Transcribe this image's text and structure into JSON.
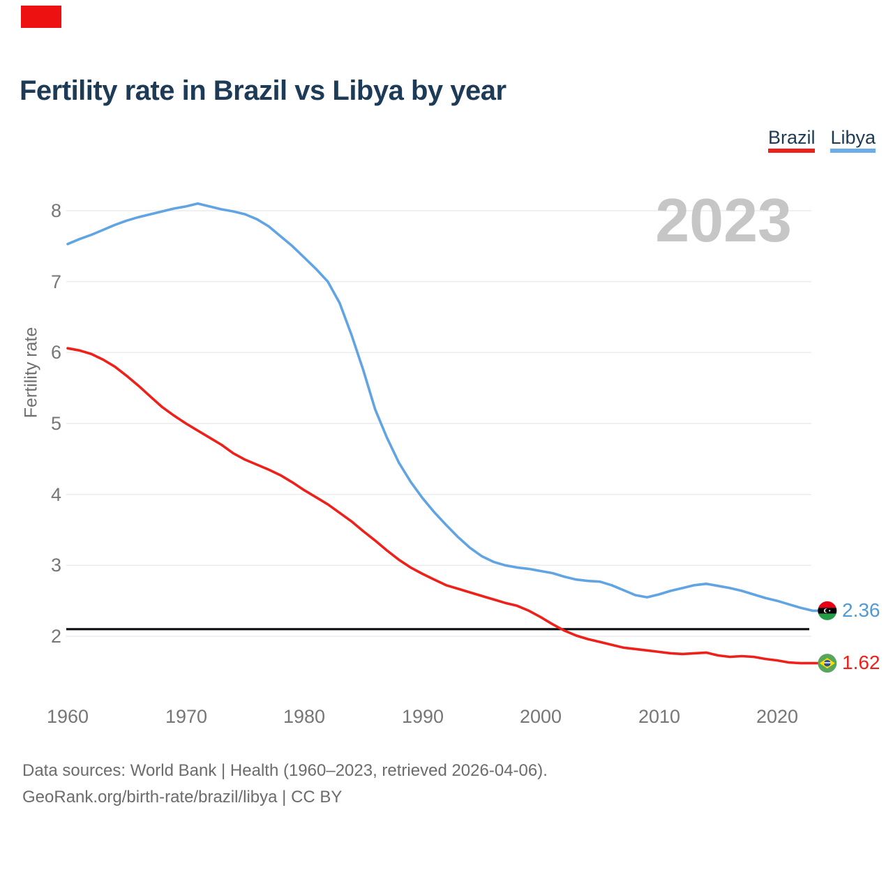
{
  "header": {
    "title": "Fertility rate in Brazil vs Libya by year"
  },
  "legend": {
    "items": [
      {
        "label": "Brazil",
        "color": "#ee2019"
      },
      {
        "label": "Libya",
        "color": "#6cace8"
      }
    ]
  },
  "watermark": "2023",
  "marker": {
    "color": "#ee1111"
  },
  "end_labels": {
    "libya": {
      "value": "2.36",
      "color": "#4f9ad9",
      "icon": "libya-flag"
    },
    "brazil": {
      "value": "1.62",
      "color": "#ee2019",
      "icon": "brazil-flag"
    }
  },
  "footer": {
    "line1": "Data sources: World Bank | Health (1960–2023, retrieved 2026-04-06).",
    "line2": "GeoRank.org/birth-rate/brazil/libya | CC BY"
  },
  "chart_data": {
    "type": "line",
    "title": "Fertility rate in Brazil vs Libya by year",
    "xlabel": "",
    "ylabel": "Fertility rate",
    "grid": "horizontal",
    "legend_position": "top-right",
    "yticks": [
      2,
      3,
      4,
      5,
      6,
      7,
      8
    ],
    "xticks": [
      1960,
      1970,
      1980,
      1990,
      2000,
      2010,
      2020
    ],
    "ylim": [
      1.55,
      8.35
    ],
    "reference_line": 2.1,
    "end_value_labels": {
      "Libya": "2.36",
      "Brazil": "1.62"
    },
    "x": [
      1960,
      1961,
      1962,
      1963,
      1964,
      1965,
      1966,
      1967,
      1968,
      1969,
      1970,
      1971,
      1972,
      1973,
      1974,
      1975,
      1976,
      1977,
      1978,
      1979,
      1980,
      1981,
      1982,
      1983,
      1984,
      1985,
      1986,
      1987,
      1988,
      1989,
      1990,
      1991,
      1992,
      1993,
      1994,
      1995,
      1996,
      1997,
      1998,
      1999,
      2000,
      2001,
      2002,
      2003,
      2004,
      2005,
      2006,
      2007,
      2008,
      2009,
      2010,
      2011,
      2012,
      2013,
      2014,
      2015,
      2016,
      2017,
      2018,
      2019,
      2020,
      2021,
      2022,
      2023
    ],
    "series": [
      {
        "name": "Brazil",
        "color": "#ee2019",
        "values": [
          6.06,
          6.03,
          5.98,
          5.9,
          5.8,
          5.67,
          5.53,
          5.38,
          5.23,
          5.11,
          5.0,
          4.9,
          4.8,
          4.7,
          4.58,
          4.49,
          4.42,
          4.35,
          4.27,
          4.17,
          4.06,
          3.96,
          3.86,
          3.74,
          3.62,
          3.48,
          3.35,
          3.21,
          3.08,
          2.97,
          2.88,
          2.8,
          2.72,
          2.67,
          2.62,
          2.57,
          2.52,
          2.47,
          2.43,
          2.36,
          2.27,
          2.17,
          2.08,
          2.01,
          1.96,
          1.92,
          1.88,
          1.84,
          1.82,
          1.8,
          1.78,
          1.76,
          1.75,
          1.76,
          1.77,
          1.73,
          1.71,
          1.72,
          1.71,
          1.68,
          1.66,
          1.63,
          1.62,
          1.62
        ]
      },
      {
        "name": "Libya",
        "color": "#61a4e3",
        "values": [
          7.53,
          7.6,
          7.66,
          7.73,
          7.8,
          7.86,
          7.91,
          7.95,
          7.99,
          8.03,
          8.06,
          8.1,
          8.06,
          8.02,
          7.99,
          7.95,
          7.88,
          7.78,
          7.64,
          7.5,
          7.34,
          7.18,
          7.0,
          6.7,
          6.25,
          5.75,
          5.2,
          4.8,
          4.45,
          4.18,
          3.95,
          3.75,
          3.57,
          3.4,
          3.25,
          3.13,
          3.05,
          3.0,
          2.97,
          2.95,
          2.92,
          2.89,
          2.84,
          2.8,
          2.78,
          2.77,
          2.72,
          2.65,
          2.58,
          2.55,
          2.59,
          2.64,
          2.68,
          2.72,
          2.74,
          2.71,
          2.68,
          2.64,
          2.59,
          2.54,
          2.5,
          2.45,
          2.4,
          2.36
        ]
      }
    ]
  }
}
